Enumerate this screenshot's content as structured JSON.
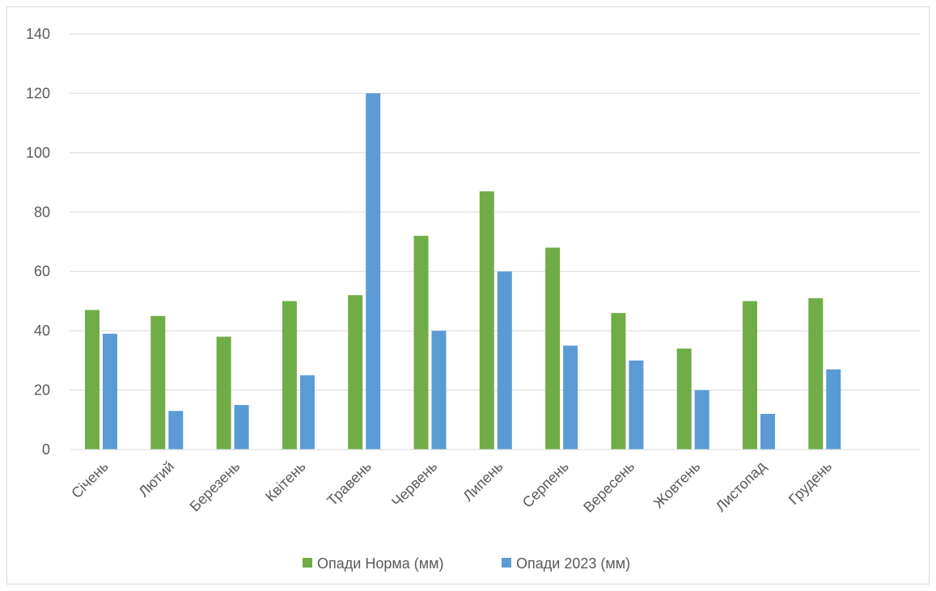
{
  "colors": {
    "norm": "#70ad47",
    "y2023": "#5b9bd5",
    "grid": "#d9d9d9",
    "text": "#595959"
  },
  "chart_data": {
    "type": "bar",
    "categories": [
      "Січень",
      "Лютий",
      "Березень",
      "Квітень",
      "Травень",
      "Червень",
      "Липень",
      "Серпень",
      "Вересень",
      "Жовтень",
      "Листопад",
      "Грудень"
    ],
    "series": [
      {
        "name": "Опади Норма (мм)",
        "values": [
          47,
          45,
          38,
          50,
          52,
          72,
          87,
          68,
          46,
          34,
          50,
          51
        ]
      },
      {
        "name": "Опади 2023 (мм)",
        "values": [
          39,
          13,
          15,
          25,
          120,
          40,
          60,
          35,
          30,
          20,
          12,
          27
        ]
      }
    ],
    "yticks": [
      "0",
      "20",
      "40",
      "60",
      "80",
      "100",
      "120",
      "140"
    ],
    "ylim": [
      0,
      140
    ],
    "grid": true,
    "legend": "bottom"
  }
}
